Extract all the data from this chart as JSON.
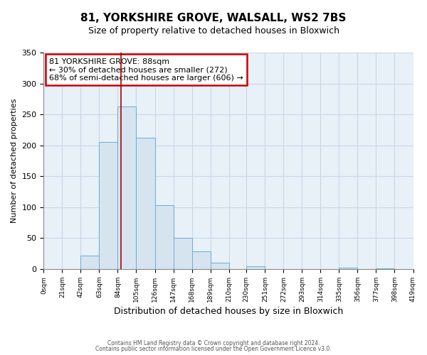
{
  "title": "81, YORKSHIRE GROVE, WALSALL, WS2 7BS",
  "subtitle": "Size of property relative to detached houses in Bloxwich",
  "xlabel": "Distribution of detached houses by size in Bloxwich",
  "ylabel": "Number of detached properties",
  "bar_color": "#d6e4f0",
  "bar_edge_color": "#6aaed6",
  "grid_color": "#c8d8e8",
  "bg_color": "#e8f0f8",
  "fig_bg_color": "#ffffff",
  "bin_edges": [
    0,
    21,
    42,
    63,
    84,
    105,
    126,
    147,
    168,
    189,
    210,
    230,
    251,
    272,
    293,
    314,
    335,
    356,
    377,
    398,
    419
  ],
  "bin_labels": [
    "0sqm",
    "21sqm",
    "42sqm",
    "63sqm",
    "84sqm",
    "105sqm",
    "126sqm",
    "147sqm",
    "168sqm",
    "189sqm",
    "210sqm",
    "230sqm",
    "251sqm",
    "272sqm",
    "293sqm",
    "314sqm",
    "335sqm",
    "356sqm",
    "377sqm",
    "398sqm",
    "419sqm"
  ],
  "counts": [
    0,
    0,
    22,
    205,
    263,
    212,
    103,
    50,
    29,
    10,
    0,
    5,
    0,
    0,
    0,
    0,
    2,
    0,
    1,
    0
  ],
  "property_size": 88,
  "property_label": "81 YORKSHIRE GROVE: 88sqm",
  "annotation_line1": "← 30% of detached houses are smaller (272)",
  "annotation_line2": "68% of semi-detached houses are larger (606) →",
  "vline_color": "#aa0000",
  "annotation_box_edge": "#cc0000",
  "annotation_box_fill": "#ffffff",
  "ylim": [
    0,
    350
  ],
  "yticks": [
    0,
    50,
    100,
    150,
    200,
    250,
    300,
    350
  ],
  "footer1": "Contains HM Land Registry data © Crown copyright and database right 2024.",
  "footer2": "Contains public sector information licensed under the Open Government Licence v3.0."
}
